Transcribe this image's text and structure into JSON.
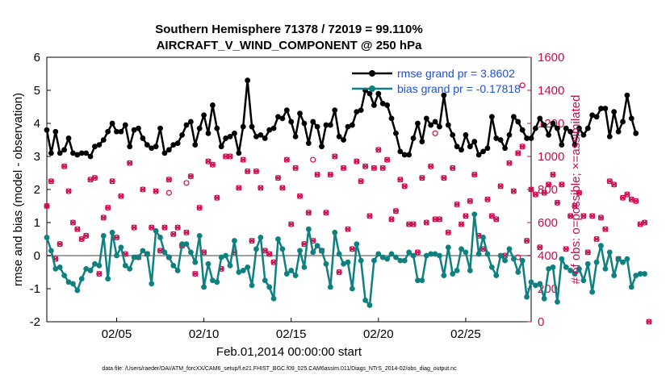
{
  "chart_data": {
    "type": "line",
    "title": "Southern Hemisphere 71378 / 72019 = 99.110%",
    "subtitle": "AIRCRAFT_V_WIND_COMPONENT @ 250 hPa",
    "xlabel": "Feb.01,2014 00:00:00 start",
    "ylabel_left": "rmse and bias (model - observation)",
    "ylabel_right": "# of obs: o=possible; ×=assimilated",
    "footnote": "data file: /Users/raeder/DAI/ATM_forcXX/CAM6_setup/f.e21.FHIST_BGC.f09_025.CAM6assim.011/Diags_NTrS_2014-02/obs_diag_output.nc",
    "xlim": [
      1,
      28.75
    ],
    "ylim_left": [
      -2,
      6
    ],
    "ylim_right": [
      0,
      1600
    ],
    "x_ticks": [
      5,
      10,
      15,
      20,
      25
    ],
    "x_tick_labels": [
      "02/05",
      "02/10",
      "02/15",
      "02/20",
      "02/25"
    ],
    "y_ticks_left": [
      -2,
      -1,
      0,
      1,
      2,
      3,
      4,
      5,
      6
    ],
    "y_ticks_right": [
      0,
      200,
      400,
      600,
      800,
      1000,
      1200,
      1400,
      1600
    ],
    "x_start": 1,
    "x_step": 0.25,
    "series": [
      {
        "name": "rmse grand pr = 3.8602",
        "color": "#000000",
        "axis": "left",
        "values": [
          3.8,
          3.1,
          3.75,
          3.1,
          3.2,
          3.55,
          3.1,
          3.05,
          3.1,
          3.1,
          3.0,
          3.3,
          3.35,
          3.5,
          3.75,
          4.0,
          3.75,
          3.75,
          3.95,
          3.3,
          3.8,
          3.85,
          3.55,
          3.35,
          3.25,
          3.3,
          3.85,
          3.1,
          3.2,
          3.35,
          3.4,
          3.65,
          3.95,
          4.05,
          3.35,
          3.85,
          4.25,
          3.7,
          4.55,
          3.85,
          3.3,
          3.55,
          3.6,
          3.7,
          3.1,
          3.9,
          5.3,
          3.9,
          3.6,
          3.65,
          3.55,
          3.8,
          3.85,
          4.2,
          4.15,
          4.4,
          4.05,
          3.6,
          4.3,
          4.0,
          3.4,
          4.05,
          3.9,
          3.3,
          3.95,
          3.95,
          4.4,
          3.6,
          3.5,
          3.9,
          3.95,
          4.35,
          4.4,
          5.0,
          4.9,
          4.55,
          4.9,
          4.6,
          4.55,
          4.15,
          3.7,
          3.15,
          3.05,
          3.05,
          3.55,
          4.0,
          3.45,
          4.15,
          3.95,
          4.05,
          3.9,
          4.85,
          3.95,
          3.65,
          3.3,
          3.2,
          3.65,
          3.3,
          3.45,
          3.05,
          3.15,
          3.25,
          4.2,
          3.55,
          3.5,
          3.25,
          3.65,
          4.2,
          4.05,
          3.8,
          3.55,
          3.55,
          3.85,
          4.15,
          3.95,
          3.65,
          4.0,
          3.85,
          3.35,
          3.85,
          3.75,
          3.35,
          3.85,
          3.65,
          3.85,
          4.25,
          4.2,
          4.45,
          4.45,
          3.6,
          4.35,
          3.75,
          4.05,
          4.85,
          4.15,
          3.7
        ]
      },
      {
        "name": "bias grand pr = -0.17818",
        "color": "#0f8080",
        "axis": "left",
        "values": [
          0.55,
          0.15,
          -0.4,
          -0.35,
          -0.6,
          -0.8,
          -0.85,
          -1.05,
          -0.7,
          -0.4,
          -0.45,
          -0.25,
          -0.3,
          0.6,
          -0.7,
          0.7,
          0.0,
          0.25,
          -0.3,
          -0.4,
          -0.05,
          -0.05,
          0.15,
          0.05,
          -0.85,
          0.75,
          0.55,
          0.1,
          -0.05,
          -0.3,
          -0.45,
          0.35,
          0.35,
          0.1,
          -0.2,
          0.6,
          -0.95,
          -0.25,
          -0.75,
          -0.8,
          -0.05,
          0.0,
          -0.3,
          0.45,
          -0.5,
          -0.45,
          -0.35,
          -0.9,
          0.2,
          0.55,
          -0.75,
          -0.95,
          -1.3,
          0.5,
          0.2,
          -0.55,
          -0.45,
          -0.6,
          0.15,
          -0.35,
          0.8,
          0.1,
          0.3,
          0.15,
          -0.25,
          -0.95,
          0.7,
          0.05,
          -0.25,
          -0.2,
          -1.0,
          0.35,
          -0.15,
          -1.35,
          -1.5,
          -0.15,
          0.05,
          -0.05,
          -0.1,
          0.05,
          -0.05,
          -0.15,
          -0.15,
          0.1,
          0.0,
          -0.75,
          -0.75,
          0.0,
          0.05,
          0.05,
          0.0,
          -0.6,
          0.25,
          -0.55,
          -0.45,
          0.2,
          0.1,
          -0.45,
          1.25,
          0.05,
          0.55,
          0.05,
          -0.35,
          -0.6,
          0.0,
          -0.15,
          0.2,
          -0.1,
          -0.5,
          -0.15,
          -1.25,
          -0.8,
          -0.9,
          -0.85,
          -1.3,
          -0.4,
          -0.35,
          -1.4,
          -0.1,
          -0.35,
          -0.45,
          -0.55,
          -0.4,
          -0.75,
          -0.25,
          -1.1,
          -0.2,
          0.3,
          -0.4,
          0.1,
          -0.6,
          -0.1,
          -0.2,
          -0.1,
          -0.95,
          -0.6,
          -0.55,
          -0.55
        ]
      },
      {
        "name": "obs possible",
        "color": "#cc0a50",
        "axis": "right",
        "marker": "o",
        "values": [
          700,
          850,
          380,
          470,
          940,
          790,
          600,
          560,
          500,
          520,
          860,
          870,
          290,
          630,
          690,
          850,
          510,
          760,
          410,
          960,
          570,
          390,
          800,
          410,
          570,
          790,
          430,
          570,
          860,
          530,
          570,
          460,
          540,
          880,
          290,
          690,
          420,
          970,
          950,
          750,
          320,
          1000,
          1000,
          420,
          810,
          980,
          910,
          490,
          910,
          810,
          430,
          410,
          360,
          870,
          810,
          980,
          590,
          930,
          760,
          470,
          660,
          490,
          890,
          430,
          660,
          890,
          1000,
          300,
          930,
          560,
          440,
          970,
          850,
          940,
          640,
          930,
          1040,
          930,
          980,
          620,
          670,
          860,
          820,
          590,
          590,
          420,
          870,
          600,
          940,
          620,
          620,
          870,
          540,
          930,
          710,
          590,
          640,
          730,
          890,
          520,
          440,
          740,
          640,
          620,
          820,
          400,
          960,
          790,
          1020,
          1060,
          490,
          800,
          770,
          450,
          780,
          830,
          890,
          720,
          830,
          440,
          640,
          700,
          780,
          640,
          420,
          640,
          500,
          630,
          560,
          850,
          830,
          380,
          750,
          770,
          740,
          730,
          590,
          600,
          0
        ]
      },
      {
        "name": "obs assimilated",
        "color": "#cc0a50",
        "axis": "right",
        "marker": "x",
        "values": [
          700,
          850,
          380,
          470,
          940,
          790,
          600,
          560,
          500,
          520,
          860,
          870,
          290,
          630,
          690,
          850,
          510,
          760,
          410,
          960,
          570,
          390,
          800,
          410,
          570,
          790,
          430,
          570,
          860,
          530,
          570,
          460,
          540,
          880,
          290,
          690,
          420,
          970,
          950,
          750,
          320,
          1000,
          1000,
          420,
          810,
          980,
          910,
          490,
          910,
          810,
          430,
          410,
          360,
          870,
          810,
          980,
          590,
          930,
          760,
          470,
          660,
          490,
          890,
          430,
          660,
          890,
          1000,
          300,
          930,
          560,
          440,
          970,
          850,
          940,
          640,
          930,
          1040,
          930,
          980,
          620,
          670,
          860,
          820,
          590,
          590,
          420,
          870,
          600,
          940,
          620,
          620,
          870,
          540,
          930,
          710,
          590,
          640,
          730,
          890,
          520,
          440,
          740,
          640,
          620,
          820,
          400,
          960,
          790,
          1020,
          1060,
          490,
          800,
          770,
          450,
          780,
          830,
          890,
          720,
          830,
          440,
          640,
          700,
          780,
          640,
          420,
          640,
          500,
          630,
          560,
          850,
          830,
          380,
          750,
          770,
          740,
          730,
          590,
          600,
          0
        ]
      }
    ],
    "special_markers": [
      {
        "axis": "right",
        "x": 9.0,
        "value": 840,
        "marker": "o"
      },
      {
        "axis": "right",
        "x": 8.0,
        "value": 780,
        "marker": "o"
      },
      {
        "axis": "right",
        "x": 16.25,
        "value": 980,
        "marker": "o"
      },
      {
        "axis": "right",
        "x": 23.25,
        "value": 1140,
        "marker": "o"
      },
      {
        "axis": "right",
        "x": 28.25,
        "value": 1430,
        "marker": "o"
      },
      {
        "axis": "right",
        "x": 8.0,
        "value": 390,
        "marker": "o"
      },
      {
        "axis": "right",
        "x": 28.0,
        "value": 390,
        "marker": "o"
      }
    ],
    "zero_line": 0
  }
}
